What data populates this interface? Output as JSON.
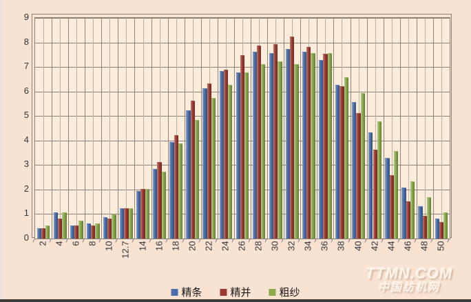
{
  "chart_data": {
    "type": "bar",
    "title": "",
    "xlabel": "",
    "ylabel": "",
    "categories": [
      "2",
      "4",
      "6",
      "8",
      "10",
      "12.7",
      "14",
      "16",
      "18",
      "20",
      "22",
      "24",
      "26",
      "28",
      "30",
      "32",
      "34",
      "36",
      "38",
      "40",
      "42",
      "44",
      "46",
      "48",
      "50"
    ],
    "series": [
      {
        "name": "精条",
        "color": "#4a6ea9",
        "values": [
          0.4,
          1.05,
          0.5,
          0.6,
          0.85,
          1.2,
          1.9,
          2.8,
          3.9,
          5.2,
          6.1,
          6.8,
          6.75,
          7.6,
          7.55,
          7.7,
          7.6,
          7.25,
          6.25,
          5.55,
          4.3,
          3.25,
          2.05,
          1.3,
          0.8
        ]
      },
      {
        "name": "精并",
        "color": "#9c3a32",
        "values": [
          0.4,
          0.8,
          0.5,
          0.5,
          0.8,
          1.2,
          2.0,
          3.1,
          4.2,
          5.6,
          6.3,
          6.85,
          7.45,
          7.85,
          7.9,
          8.2,
          7.8,
          7.5,
          6.2,
          5.1,
          3.6,
          2.55,
          1.5,
          0.9,
          0.65
        ]
      },
      {
        "name": "粗纱",
        "color": "#8aaa4c",
        "values": [
          0.5,
          1.05,
          0.7,
          0.6,
          0.95,
          1.2,
          2.0,
          2.7,
          3.85,
          4.8,
          5.7,
          6.25,
          6.75,
          7.1,
          7.2,
          7.1,
          7.55,
          7.55,
          6.55,
          5.9,
          4.75,
          3.55,
          2.3,
          1.65,
          1.05
        ]
      }
    ],
    "ylim": [
      0,
      9
    ],
    "ytick_labels": [
      "0",
      "1",
      "2",
      "3",
      "4",
      "5",
      "6",
      "7",
      "8",
      "9"
    ],
    "legend": [
      "精条",
      "精并",
      "粗纱"
    ],
    "legend_position": "bottom-center",
    "grid": {
      "horizontal": "every 1 unit",
      "vertical": "two lines per category"
    }
  },
  "watermark": {
    "line1": "TTMN.COM",
    "line2": "中国纺机网"
  },
  "colors": {
    "page_background": "#f8e3d3",
    "plot_background": "#fcecdc",
    "grid_line": "#8a8178",
    "grid_line_minor": "#b8af9f",
    "axis_text": "#333333",
    "bottom_edge": "#3f3b38"
  }
}
